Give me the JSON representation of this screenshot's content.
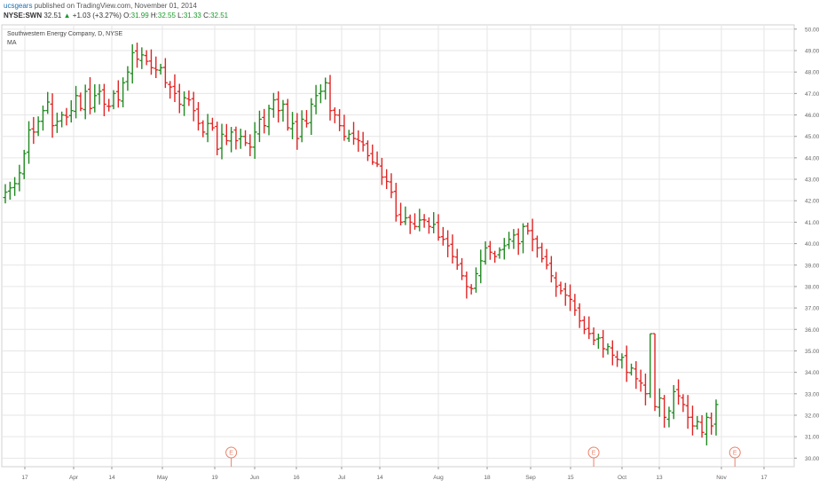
{
  "header": {
    "publisher": "ucsgears",
    "published_text": "published on TradingView.com, November 01, 2014",
    "symbol": "NYSE:SWN",
    "last": "32.51",
    "change_arrow": "▲",
    "change": "+1.03 (+3.27%)",
    "o_label": "O:",
    "o_value": "31.99",
    "h_label": "H:",
    "h_value": "32.55",
    "l_label": "L:",
    "l_value": "31.33",
    "c_label": "C:",
    "c_value": "32.51"
  },
  "chart_data": {
    "type": "ohlc",
    "title": "Southwestern Energy Company, D, NYSE",
    "indicator": "MA",
    "ylim": [
      29.6,
      50.2
    ],
    "y_ticks": [
      30,
      31,
      32,
      33,
      34,
      35,
      36,
      37,
      38,
      39,
      40,
      41,
      42,
      43,
      44,
      45,
      46,
      47,
      48,
      49,
      50
    ],
    "x_ticks": [
      "17",
      "Apr",
      "14",
      "May",
      "19",
      "Jun",
      "16",
      "Jul",
      "14",
      "Aug",
      "18",
      "Sep",
      "15",
      "Oct",
      "13",
      "Nov",
      "17"
    ],
    "earnings_marker": "E",
    "colors": {
      "up": "#1f8a1f",
      "down": "#e02424",
      "grid": "#e6e6e6",
      "axis": "#666666",
      "earnings": "#e8826a"
    },
    "closes": [
      42.4,
      42.6,
      42.8,
      43.3,
      44.2,
      45.3,
      45.2,
      45.7,
      46.2,
      46.6,
      45.5,
      45.7,
      46.0,
      45.9,
      46.2,
      46.9,
      46.3,
      47.1,
      46.3,
      46.9,
      47.1,
      46.5,
      46.4,
      47.0,
      46.7,
      47.5,
      48.0,
      48.9,
      48.6,
      48.8,
      48.5,
      48.2,
      48.1,
      48.2,
      47.5,
      47.3,
      47.0,
      46.5,
      46.8,
      46.7,
      46.2,
      45.6,
      45.2,
      45.6,
      45.4,
      44.4,
      45.1,
      44.8,
      45.2,
      44.8,
      45.0,
      44.7,
      44.5,
      45.2,
      45.8,
      45.5,
      46.3,
      46.7,
      46.2,
      46.5,
      45.4,
      45.6,
      44.9,
      45.8,
      45.6,
      46.5,
      46.9,
      47.1,
      47.5,
      46.2,
      46.0,
      45.5,
      45.0,
      45.1,
      44.9,
      44.8,
      44.6,
      44.1,
      43.8,
      43.7,
      43.1,
      42.9,
      42.4,
      41.3,
      41.0,
      41.2,
      41.0,
      40.8,
      41.1,
      41.1,
      40.8,
      40.9,
      40.3,
      40.2,
      39.9,
      39.4,
      39.0,
      38.5,
      38.0,
      37.9,
      38.6,
      39.2,
      39.8,
      39.6,
      39.4,
      39.7,
      39.9,
      40.2,
      40.4,
      40.0,
      40.8,
      40.6,
      40.2,
      39.8,
      39.3,
      39.0,
      38.5,
      38.0,
      37.8,
      37.6,
      37.4,
      36.9,
      36.4,
      36.0,
      35.8,
      35.5,
      35.6,
      35.1,
      35.2,
      34.8,
      34.6,
      34.7,
      34.0,
      34.2,
      33.7,
      33.5,
      33.0,
      35.8,
      32.4,
      32.8,
      31.9,
      32.2,
      33.1,
      32.9,
      32.5,
      31.9,
      31.5,
      31.7,
      31.2,
      31.9,
      31.5,
      32.5
    ],
    "earnings_days": [
      48,
      125,
      155
    ]
  }
}
